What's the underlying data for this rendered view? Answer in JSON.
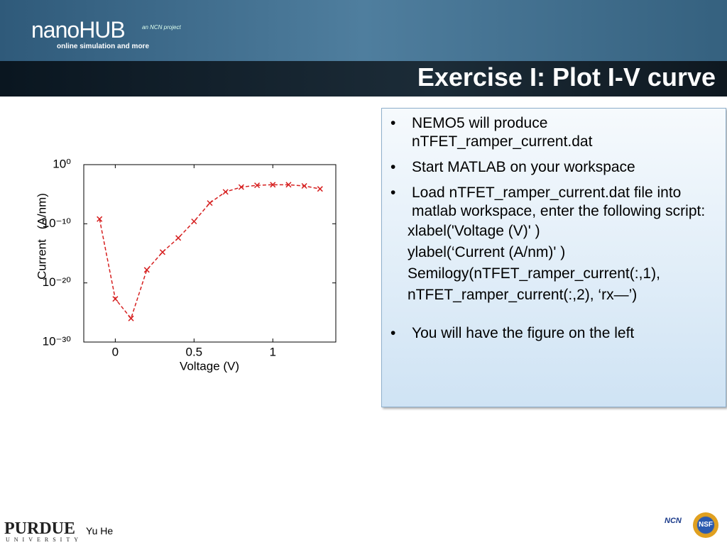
{
  "header": {
    "logo": "nanoHUB",
    "tagline": "online simulation and more",
    "project": "an NCN project",
    "title": "Exercise I: Plot  I-V curve"
  },
  "textbox": {
    "bullets": [
      "NEMO5 will produce nTFET_ramper_current.dat",
      "Start MATLAB on your workspace",
      "Load nTFET_ramper_current.dat file into matlab workspace, enter the following script:",
      "You will have the figure on the left"
    ],
    "script_lines": [
      "xlabel('Voltage (V)' )",
      "ylabel(‘Current (A/nm)' )",
      "Semilogy(nTFET_ramper_current(:,1),",
      "nTFET_ramper_current(:,2), ‘rx—’)"
    ]
  },
  "footer": {
    "university": "PURDUE",
    "university_sub": "UNIVERSITY",
    "author": "Yu He",
    "ncn": "NCN",
    "nsf": "NSF"
  },
  "chart_data": {
    "type": "line",
    "xlabel": "Voltage (V)",
    "ylabel": "Current   (A/nm)",
    "x": [
      -0.1,
      0,
      0.1,
      0.2,
      0.3,
      0.4,
      0.5,
      0.6,
      0.7,
      0.8,
      0.9,
      1.0,
      1.1,
      1.2,
      1.3
    ],
    "series": [
      {
        "color": "#d62020",
        "values": [
          6.3e-10,
          2e-23,
          1e-26,
          1.6e-18,
          1.6e-15,
          4e-13,
          2.5e-10,
          3.2e-07,
          2.5e-05,
          0.00016,
          0.00032,
          0.0004,
          0.0004,
          0.00025,
          7.9e-05
        ]
      }
    ],
    "xlim": [
      -0.2,
      1.4
    ],
    "xticks": [
      0,
      0.5,
      1
    ],
    "ylim": [
      1e-30,
      1
    ],
    "log_y": true,
    "yticks": [
      {
        "value": 1,
        "label": "10⁰"
      },
      {
        "value": 1e-10,
        "label": "10⁻¹⁰"
      },
      {
        "value": 1e-20,
        "label": "10⁻²⁰"
      },
      {
        "value": 1e-30,
        "label": "10⁻³⁰"
      }
    ]
  }
}
